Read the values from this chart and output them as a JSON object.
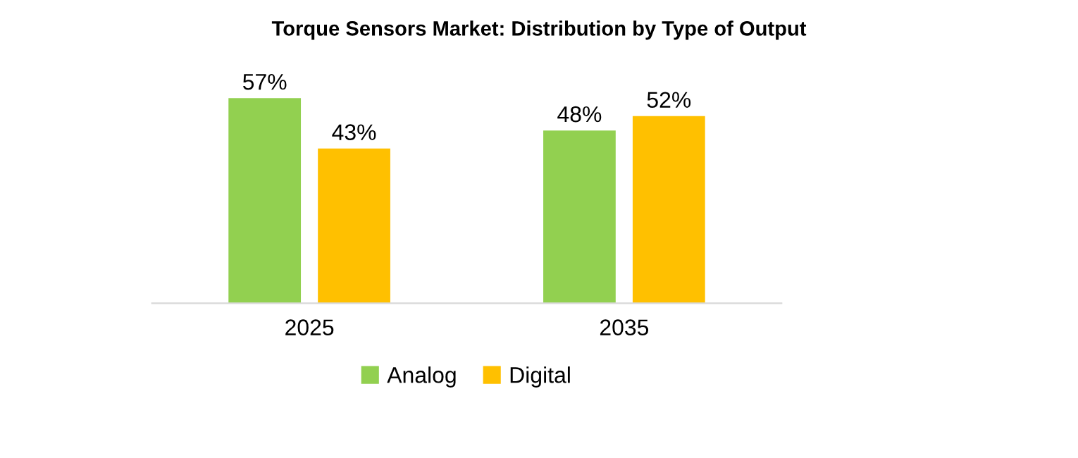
{
  "chart_data": {
    "type": "bar",
    "title": "Torque Sensors Market: Distribution by Type of Output",
    "categories": [
      "2025",
      "2035"
    ],
    "series": [
      {
        "name": "Analog",
        "color": "#92d050",
        "values": [
          57,
          48
        ],
        "value_labels": [
          "57%",
          "48%"
        ]
      },
      {
        "name": "Digital",
        "color": "#ffc000",
        "values": [
          43,
          52
        ],
        "value_labels": [
          "43%",
          "52%"
        ]
      }
    ],
    "legend": "bottom",
    "grid": false
  }
}
